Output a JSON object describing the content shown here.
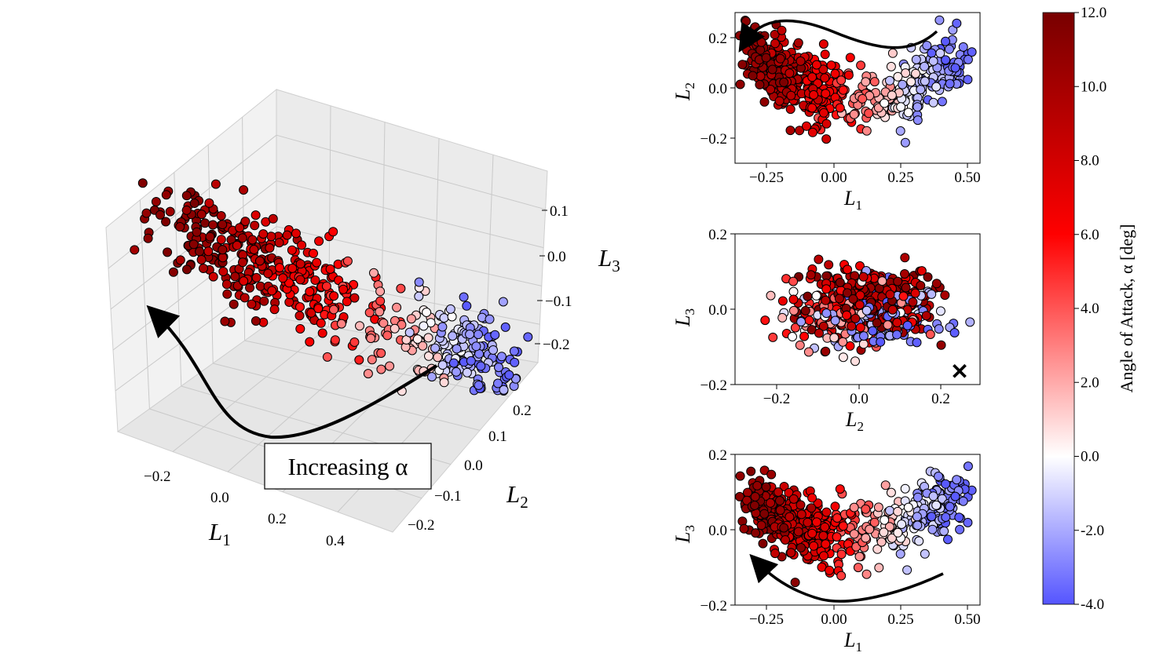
{
  "figure": {
    "annotation": "Increasing α",
    "colorbar": {
      "label": "Angle of Attack, α [deg]",
      "ticks": [
        "12.0",
        "10.0",
        "8.0",
        "6.0",
        "4.0",
        "2.0",
        "0.0",
        "-2.0",
        "-4.0"
      ],
      "min": -4.0,
      "max": 12.0
    },
    "panel3d": {
      "xlabel": "L1",
      "ylabel": "L2",
      "zlabel": "L3",
      "xticks": [
        "−0.2",
        "0.0",
        "0.2",
        "0.4"
      ],
      "yticks": [
        "0.2",
        "0.1",
        "0.0",
        "−0.1",
        "−0.2"
      ],
      "zticks": [
        "0.1",
        "0.0",
        "−0.1",
        "−0.2"
      ]
    },
    "panel_top": {
      "xlabel": "L1",
      "ylabel": "L2",
      "xticks": [
        "−0.25",
        "0.00",
        "0.25",
        "0.50"
      ],
      "yticks": [
        "0.2",
        "0.0",
        "−0.2"
      ]
    },
    "panel_mid": {
      "xlabel": "L2",
      "ylabel": "L3",
      "xticks": [
        "−0.2",
        "0.0",
        "0.2"
      ],
      "yticks": [
        "0.2",
        "0.0",
        "−0.2"
      ]
    },
    "panel_bot": {
      "xlabel": "L1",
      "ylabel": "L3",
      "xticks": [
        "−0.25",
        "0.00",
        "0.25",
        "0.50"
      ],
      "yticks": [
        "0.2",
        "0.0",
        "−0.2"
      ]
    }
  },
  "chart_data": [
    {
      "type": "scatter",
      "title": "",
      "projection": "3d",
      "xlabel": "L1",
      "ylabel": "L2",
      "zlabel": "L3",
      "xlim": [
        -0.35,
        0.5
      ],
      "ylim": [
        -0.25,
        0.25
      ],
      "zlim": [
        -0.25,
        0.15
      ],
      "color_by": "Angle of Attack, α [deg]",
      "clusters": [
        {
          "alpha_range": [
            8,
            12
          ],
          "L1_center": -0.2,
          "L2_center": 0.05,
          "L3_center": 0.0
        },
        {
          "alpha_range": [
            0,
            4
          ],
          "L1_center": 0.05,
          "L2_center": 0.0,
          "L3_center": -0.05
        },
        {
          "alpha_range": [
            -4,
            -1
          ],
          "L1_center": 0.35,
          "L2_center": 0.1,
          "L3_center": 0.0
        }
      ]
    },
    {
      "type": "scatter",
      "title": "",
      "xlabel": "L1",
      "ylabel": "L2",
      "xlim": [
        -0.38,
        0.53
      ],
      "ylim": [
        -0.3,
        0.3
      ],
      "color_by": "Angle of Attack, α [deg]",
      "trend": "L2 decreases then rises as L1 increases; α decreases from 12 to −4 with L1"
    },
    {
      "type": "scatter",
      "title": "",
      "xlabel": "L2",
      "ylabel": "L3",
      "xlim": [
        -0.29,
        0.3
      ],
      "ylim": [
        -0.2,
        0.2
      ],
      "color_by": "Angle of Attack, α [deg]",
      "marker_x": [
        0.25,
        -0.165
      ]
    },
    {
      "type": "scatter",
      "title": "",
      "xlabel": "L1",
      "ylabel": "L3",
      "xlim": [
        -0.38,
        0.53
      ],
      "ylim": [
        -0.2,
        0.2
      ],
      "color_by": "Angle of Attack, α [deg]",
      "trend": "U-shaped: L3 lowest near L1≈0, α decreases with increasing L1"
    }
  ]
}
